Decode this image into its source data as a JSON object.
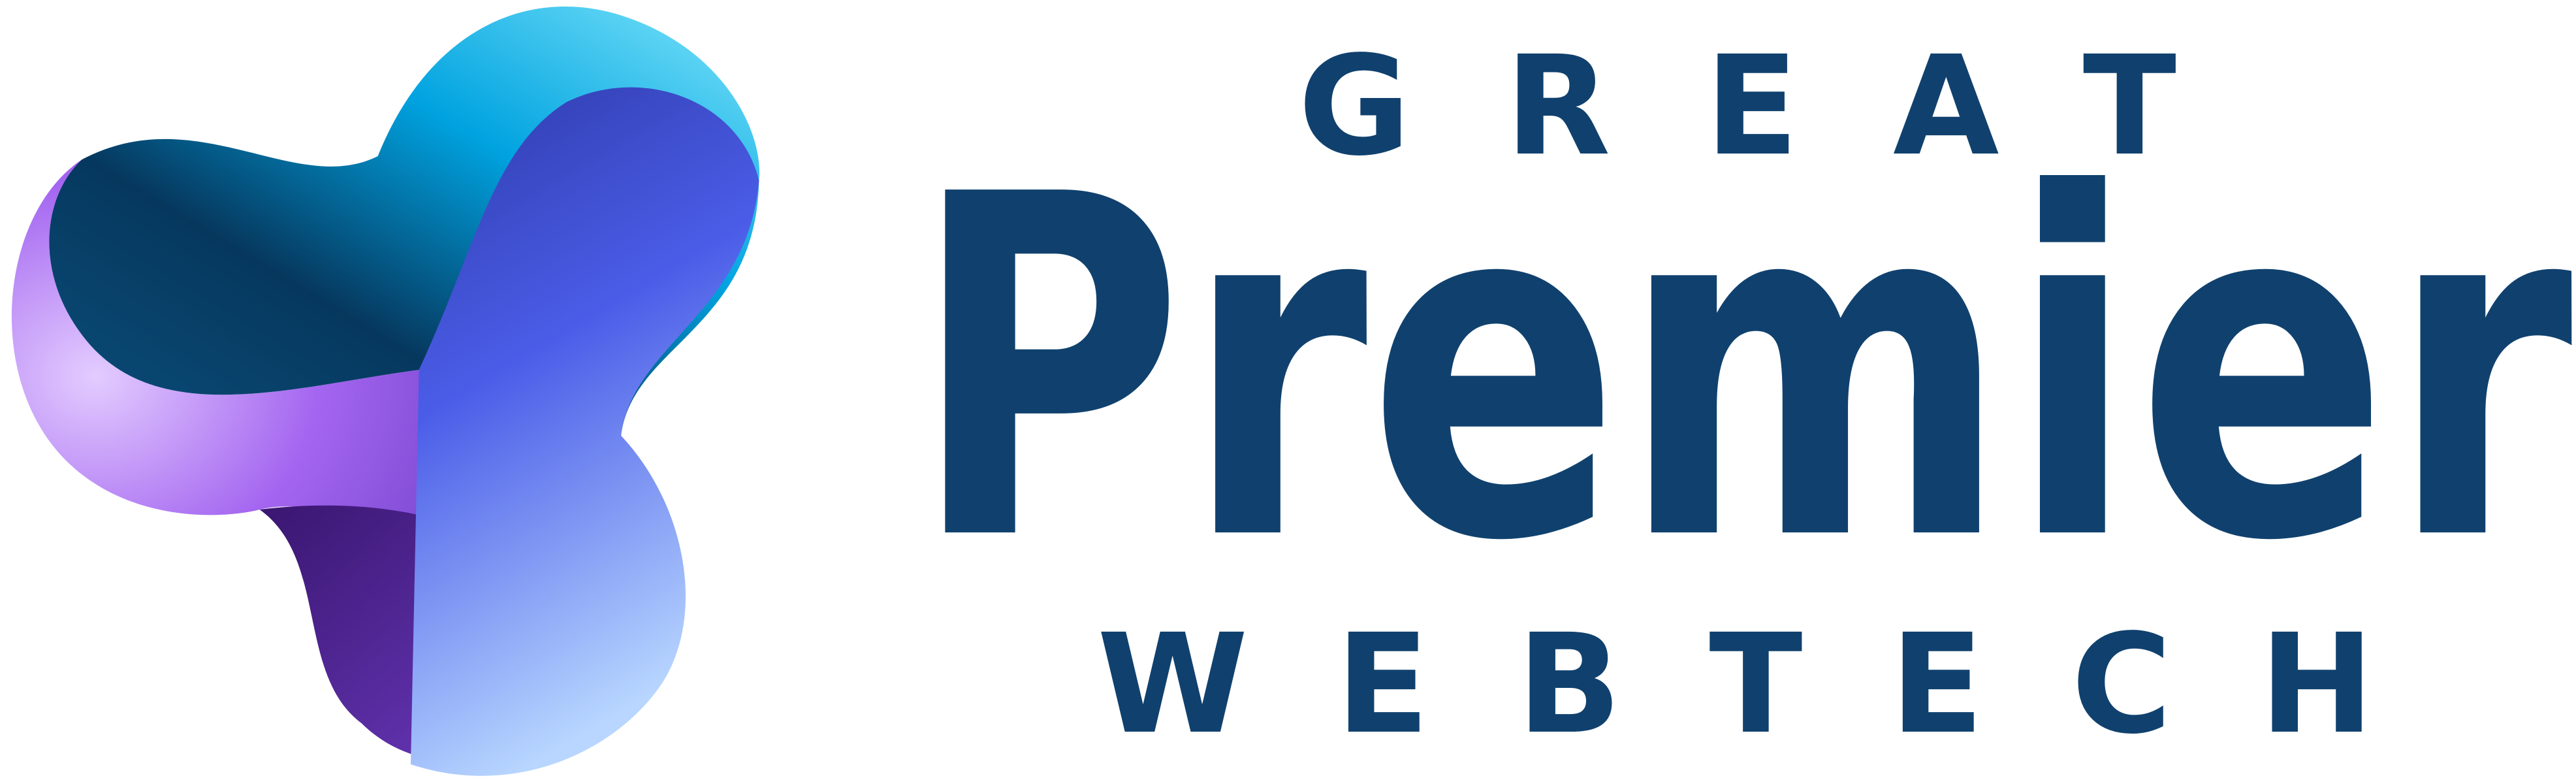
{
  "logo": {
    "top": "GREAT",
    "main": "Premier",
    "bottom": "WEBTECH"
  }
}
